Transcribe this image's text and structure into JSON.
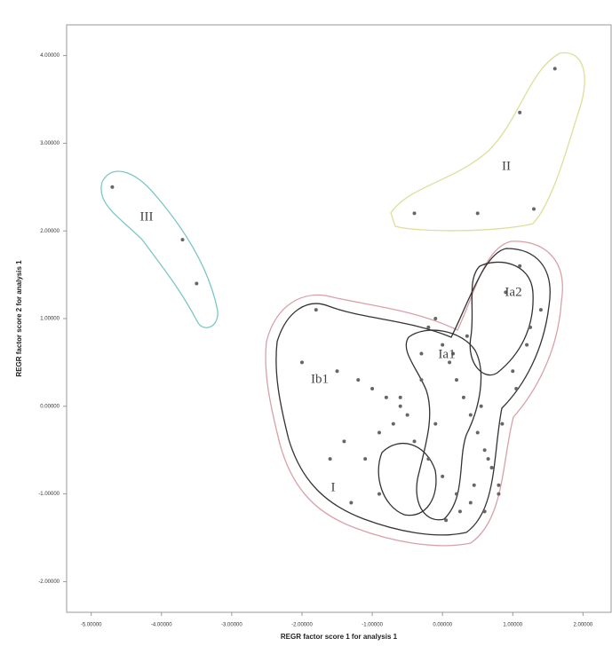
{
  "chart_data": {
    "type": "scatter",
    "x_label": "REGR factor score   1 for analysis 1",
    "y_label": "REGR factor score   2 for analysis 1",
    "xlim": [
      -5.35,
      2.4
    ],
    "ylim": [
      -2.35,
      4.35
    ],
    "xticks": [
      {
        "value": -5,
        "label": "-5.00000"
      },
      {
        "value": -4,
        "label": "-4.00000"
      },
      {
        "value": -3,
        "label": "-3.00000"
      },
      {
        "value": -2,
        "label": "-2.00000"
      },
      {
        "value": -1,
        "label": "-1.00000"
      },
      {
        "value": 0,
        "label": "0.00000"
      },
      {
        "value": 1,
        "label": "1.00000"
      },
      {
        "value": 2,
        "label": "2.00000"
      }
    ],
    "yticks": [
      {
        "value": -2,
        "label": "-2.00000"
      },
      {
        "value": -1,
        "label": "-1.00000"
      },
      {
        "value": 0,
        "label": "0.00000"
      },
      {
        "value": 1,
        "label": "1.00000"
      },
      {
        "value": 2,
        "label": "2.00000"
      },
      {
        "value": 3,
        "label": "3.00000"
      },
      {
        "value": 4,
        "label": "4.00000"
      }
    ],
    "color": "#666666",
    "annotations": [
      "III",
      "II",
      "I",
      "Ib1",
      "Ia1",
      "Ia2"
    ],
    "x": [
      -4.7,
      -3.7,
      -3.5,
      1.6,
      1.1,
      -0.4,
      0.5,
      1.3,
      -1.8,
      -2.0,
      -1.5,
      -1.2,
      -1.0,
      -0.8,
      -0.6,
      -0.5,
      -0.3,
      -0.2,
      -0.1,
      0.0,
      0.1,
      0.2,
      0.3,
      0.4,
      0.5,
      0.6,
      0.7,
      0.8,
      -1.4,
      -1.1,
      -0.9,
      -0.7,
      -0.4,
      -0.2,
      0.0,
      0.2,
      0.4,
      0.6,
      0.8,
      1.0,
      1.2,
      1.4,
      1.1,
      0.9,
      -1.6,
      -1.3,
      -0.9,
      -0.6,
      -0.3,
      0.05,
      0.25,
      0.45,
      0.65,
      0.85,
      1.05,
      1.25,
      0.15,
      0.35,
      -0.1,
      0.55
    ],
    "y": [
      2.5,
      1.9,
      1.4,
      3.85,
      3.35,
      2.2,
      2.2,
      2.25,
      1.1,
      0.5,
      0.4,
      0.3,
      0.2,
      0.1,
      0.0,
      -0.1,
      0.6,
      0.9,
      1.0,
      0.7,
      0.5,
      0.3,
      0.1,
      -0.1,
      -0.3,
      -0.5,
      -0.7,
      -0.9,
      -0.4,
      -0.6,
      -0.3,
      -0.2,
      -0.4,
      -0.6,
      -0.8,
      -1.0,
      -1.1,
      -1.2,
      -1.0,
      0.4,
      0.7,
      1.1,
      1.6,
      1.3,
      -0.6,
      -1.1,
      -1.0,
      0.1,
      0.3,
      -1.3,
      -1.2,
      -0.9,
      -0.6,
      -0.2,
      0.2,
      0.9,
      0.6,
      0.8,
      -0.2,
      0.0
    ]
  }
}
